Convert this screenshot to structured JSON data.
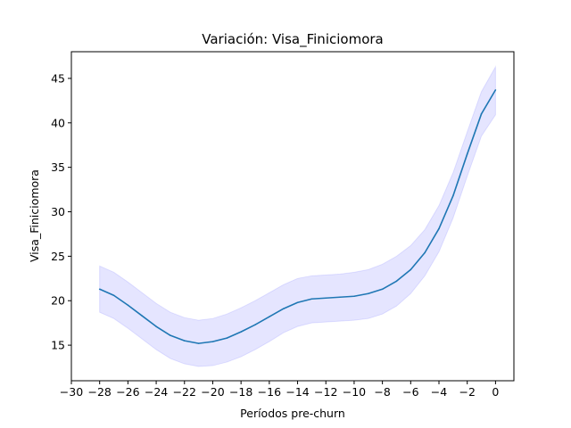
{
  "chart_data": {
    "type": "line",
    "title": "Variación: Visa_Finiciomora",
    "xlabel": "Períodos pre-churn",
    "ylabel": "Visa_Finiciomora",
    "xlim": [
      -30,
      1.3
    ],
    "ylim": [
      11.0,
      48.0
    ],
    "x_ticks": [
      -30,
      -28,
      -26,
      -24,
      -22,
      -20,
      -18,
      -16,
      -14,
      -12,
      -10,
      -8,
      -6,
      -4,
      -2,
      0
    ],
    "x_tick_labels": [
      "−30",
      "−28",
      "−26",
      "−24",
      "−22",
      "−20",
      "−18",
      "−16",
      "−14",
      "−12",
      "−10",
      "−8",
      "−6",
      "−4",
      "−2",
      "0"
    ],
    "y_ticks": [
      15,
      20,
      25,
      30,
      35,
      40,
      45
    ],
    "y_tick_labels": [
      "15",
      "20",
      "25",
      "30",
      "35",
      "40",
      "45"
    ],
    "grid": false,
    "colors": {
      "line": "#1f77b4",
      "band": "#0000ff",
      "band_opacity": 0.1
    },
    "series": [
      {
        "x": [
          -28,
          -27,
          -26,
          -25,
          -24,
          -23,
          -22,
          -21,
          -20,
          -19,
          -18,
          -17,
          -16,
          -15,
          -14,
          -13,
          -12,
          -11,
          -10,
          -9,
          -8,
          -7,
          -6,
          -5,
          -4,
          -3,
          -2,
          -1,
          0
        ],
        "values": [
          21.3,
          20.6,
          19.5,
          18.3,
          17.1,
          16.1,
          15.5,
          15.2,
          15.4,
          15.8,
          16.5,
          17.3,
          18.2,
          19.1,
          19.8,
          20.2,
          20.3,
          20.4,
          20.5,
          20.8,
          21.3,
          22.2,
          23.5,
          25.4,
          28.1,
          31.8,
          36.5,
          41.0,
          43.7
        ],
        "lower": [
          18.7,
          18.0,
          16.9,
          15.7,
          14.5,
          13.5,
          12.9,
          12.6,
          12.7,
          13.1,
          13.7,
          14.5,
          15.4,
          16.4,
          17.1,
          17.5,
          17.6,
          17.7,
          17.8,
          18.0,
          18.5,
          19.4,
          20.8,
          22.8,
          25.5,
          29.3,
          34.0,
          38.5,
          40.9
        ],
        "upper": [
          23.9,
          23.2,
          22.1,
          20.9,
          19.7,
          18.7,
          18.1,
          17.8,
          18.0,
          18.5,
          19.2,
          20.0,
          20.9,
          21.8,
          22.5,
          22.8,
          22.9,
          23.0,
          23.2,
          23.5,
          24.1,
          25.0,
          26.2,
          28.0,
          30.7,
          34.4,
          39.0,
          43.5,
          46.3
        ]
      }
    ]
  }
}
